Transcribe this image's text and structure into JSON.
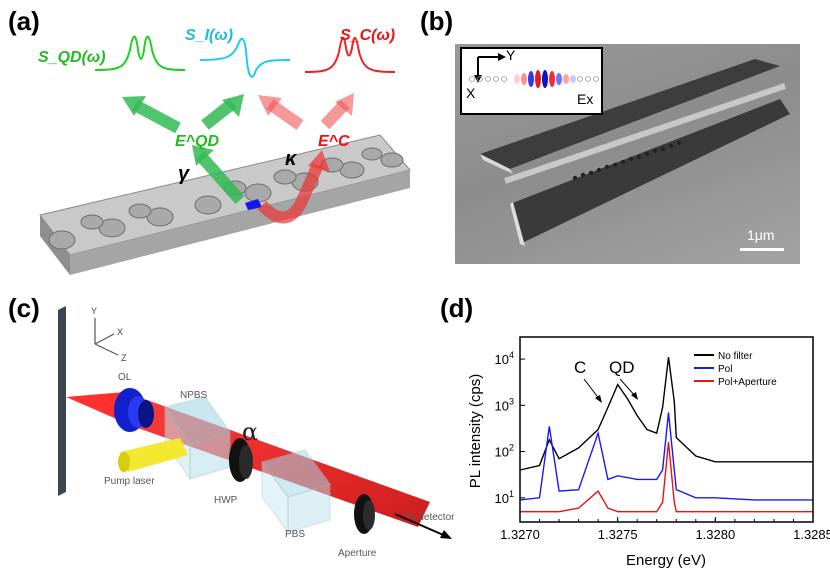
{
  "panels": {
    "a": {
      "label": "(a)",
      "spectra": [
        "S_QD(ω)",
        "S_I(ω)",
        "S_C(ω)"
      ],
      "fields": [
        "E^QD",
        "E^C"
      ],
      "rates": [
        "γ",
        "κ"
      ],
      "colors": {
        "qd": "#22cc22",
        "interference": "#22ccee",
        "cavity": "#ee2222"
      }
    },
    "b": {
      "label": "(b)",
      "inset_axis_y": "Y",
      "inset_axis_x": "X",
      "inset_field": "Ex",
      "scalebar": "1μm"
    },
    "c": {
      "label": "(c)",
      "axes": {
        "y": "Y",
        "x": "X",
        "z": "Z"
      },
      "components": {
        "ol": "OL",
        "npbs": "NPBS",
        "pump": "Pump laser",
        "alpha": "α",
        "hwp": "HWP",
        "pbs": "PBS",
        "aperture": "Aperture",
        "detector": "To detector"
      }
    },
    "d": {
      "label": "(d)",
      "annotations": {
        "cavity": "C",
        "dot": "QD"
      }
    }
  },
  "chart_data": {
    "type": "line",
    "xlabel": "Energy (eV)",
    "ylabel": "PL intensity (cps)",
    "yscale": "log",
    "xlim": [
      1.327,
      1.3285
    ],
    "ylim": [
      3,
      30000
    ],
    "xticks": [
      "1.3270",
      "1.3275",
      "1.3280",
      "1.3285"
    ],
    "yticks": [
      "10^1",
      "10^2",
      "10^3",
      "10^4"
    ],
    "legend_position": "top-right",
    "series": [
      {
        "name": "No filter",
        "color": "#000000",
        "x": [
          1.327,
          1.3271,
          1.32715,
          1.3272,
          1.3273,
          1.3274,
          1.32745,
          1.3275,
          1.32755,
          1.3276,
          1.32765,
          1.3277,
          1.32773,
          1.32776,
          1.32779,
          1.3278,
          1.3279,
          1.328,
          1.3282,
          1.3285
        ],
        "y": [
          40,
          50,
          180,
          70,
          120,
          300,
          900,
          2800,
          1400,
          600,
          300,
          250,
          900,
          11000,
          1200,
          200,
          80,
          60,
          60,
          60
        ]
      },
      {
        "name": "Pol",
        "color": "#1a1aee",
        "x": [
          1.327,
          1.3271,
          1.32715,
          1.3272,
          1.3273,
          1.3274,
          1.32745,
          1.3275,
          1.3276,
          1.3277,
          1.32773,
          1.32776,
          1.32779,
          1.3278,
          1.3279,
          1.328,
          1.3282,
          1.3285
        ],
        "y": [
          9,
          10,
          350,
          14,
          15,
          250,
          25,
          30,
          25,
          25,
          40,
          700,
          40,
          15,
          10,
          10,
          9,
          9
        ]
      },
      {
        "name": "Pol+Aperture",
        "color": "#ee1111",
        "x": [
          1.327,
          1.3271,
          1.3272,
          1.3273,
          1.3274,
          1.32745,
          1.3275,
          1.3276,
          1.3277,
          1.32773,
          1.32776,
          1.32779,
          1.3278,
          1.3279,
          1.328,
          1.3282,
          1.3285
        ],
        "y": [
          5,
          5,
          5,
          6,
          14,
          6,
          5,
          5,
          5,
          8,
          160,
          8,
          5,
          5,
          5,
          5,
          5
        ]
      }
    ]
  }
}
